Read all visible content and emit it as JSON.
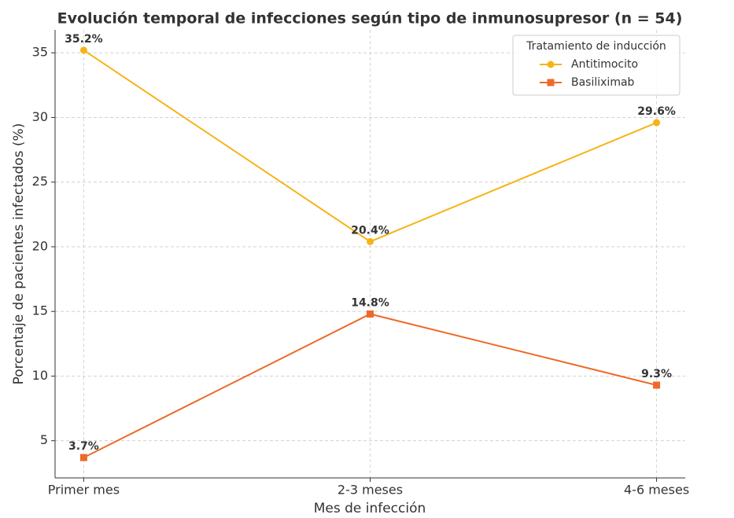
{
  "chart_data": {
    "type": "line",
    "title": "Evolución temporal de infecciones según tipo de inmunosupresor (n = 54)",
    "x_label": "Mes de infección",
    "y_label": "Porcentaje de pacientes infectados (%)",
    "categories": [
      "Primer mes",
      "2-3 meses",
      "4-6 meses"
    ],
    "series": [
      {
        "name": "Antitimocito",
        "color": "#f7b316",
        "marker": "circle",
        "values": [
          35.2,
          20.4,
          29.6
        ],
        "value_labels": [
          "35.2%",
          "20.4%",
          "29.6%"
        ]
      },
      {
        "name": "Basiliximab",
        "color": "#ee6a2a",
        "marker": "square",
        "values": [
          3.7,
          14.8,
          9.3
        ],
        "value_labels": [
          "3.7%",
          "14.8%",
          "9.3%"
        ]
      }
    ],
    "ylim": [
      2.125,
      36.775
    ],
    "yticks": [
      5,
      10,
      15,
      20,
      25,
      30,
      35
    ],
    "grid": true,
    "legend": {
      "title": "Tratamiento de inducción",
      "position": "upper right"
    }
  }
}
